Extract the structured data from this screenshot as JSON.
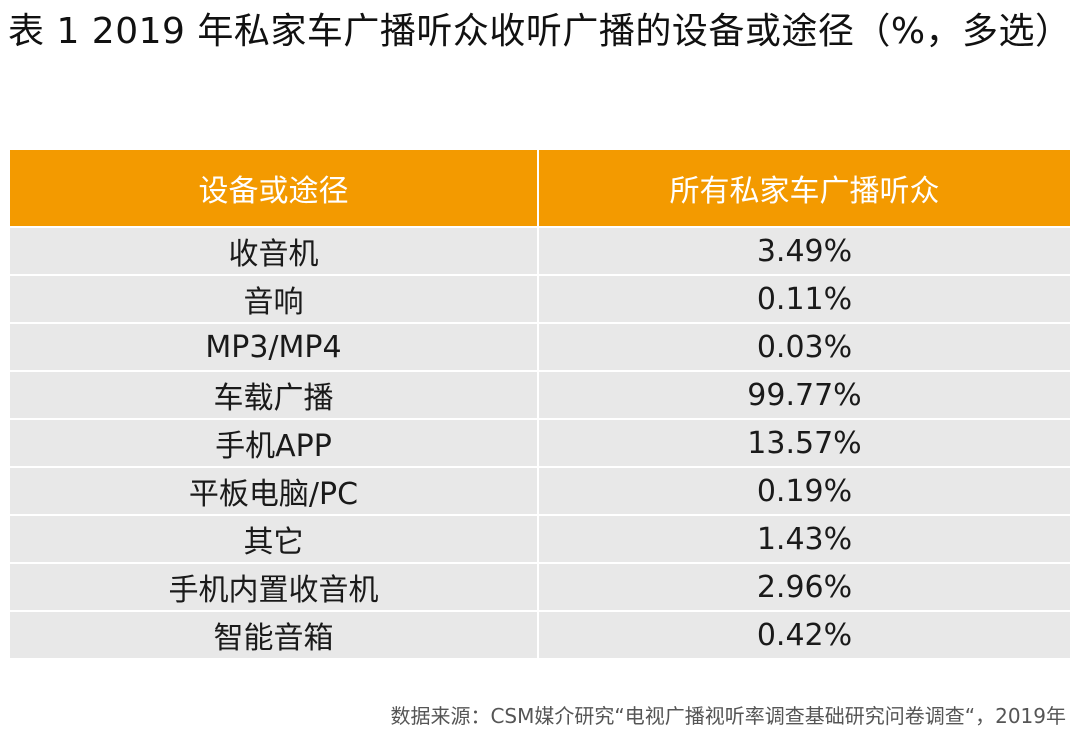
{
  "title": "表 1 2019 年私家车广播听众收听广播的设备或途径（%，多选）",
  "chart_data": {
    "type": "table",
    "columns": [
      "设备或途径",
      "所有私家车广播听众"
    ],
    "rows": [
      {
        "label": "收音机",
        "value": "3.49%"
      },
      {
        "label": "音响",
        "value": "0.11%"
      },
      {
        "label": "MP3/MP4",
        "value": "0.03%"
      },
      {
        "label": "车载广播",
        "value": "99.77%"
      },
      {
        "label": "手机APP",
        "value": "13.57%"
      },
      {
        "label": "平板电脑/PC",
        "value": "0.19%"
      },
      {
        "label": "其它",
        "value": "1.43%"
      },
      {
        "label": "手机内置收音机",
        "value": "2.96%"
      },
      {
        "label": "智能音箱",
        "value": "0.42%"
      }
    ]
  },
  "source": "数据来源：CSM媒介研究“电视广播视听率调查基础研究问卷调查“，2019年",
  "colors": {
    "header_bg": "#f39a00",
    "row_bg": "#e8e8e8"
  }
}
